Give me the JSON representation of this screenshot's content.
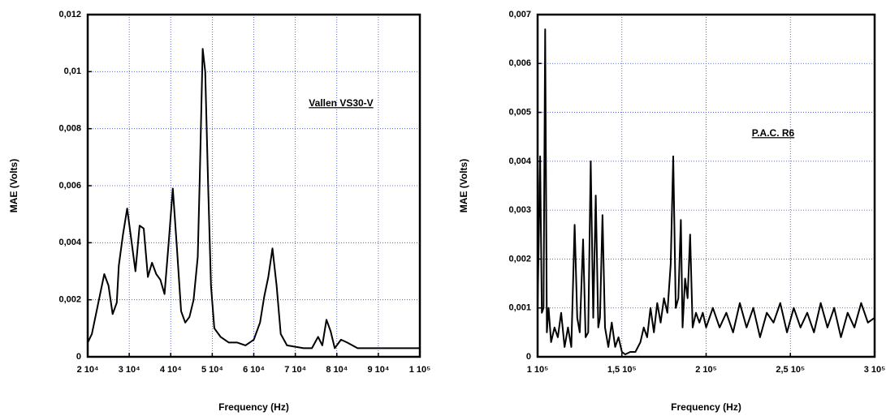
{
  "chart_data": [
    {
      "type": "line",
      "annotation": "Vallen  VS30-V",
      "x_label": "Frequency  (Hz)",
      "y_label": "MAE  (Volts)",
      "color": "#000000",
      "grid": true,
      "xlim": [
        20000,
        100000
      ],
      "xticks": [
        {
          "value": 20000,
          "label": "2 10⁴"
        },
        {
          "value": 30000,
          "label": "3 10⁴"
        },
        {
          "value": 40000,
          "label": "4 10⁴"
        },
        {
          "value": 50000,
          "label": "5 10⁴"
        },
        {
          "value": 60000,
          "label": "6 10⁴"
        },
        {
          "value": 70000,
          "label": "7 10⁴"
        },
        {
          "value": 80000,
          "label": "8 10⁴"
        },
        {
          "value": 90000,
          "label": "9 10⁴"
        },
        {
          "value": 100000,
          "label": "1 10⁵"
        }
      ],
      "ylim": [
        0,
        0.012
      ],
      "yticks": [
        0,
        {
          "value": 0.002,
          "label": "0,002"
        },
        {
          "value": 0.004,
          "label": "0,004"
        },
        {
          "value": 0.006,
          "label": "0,006"
        },
        {
          "value": 0.008,
          "label": "0,008"
        },
        {
          "value": 0.01,
          "label": "0,01"
        },
        {
          "value": 0.012,
          "label": "0,012"
        }
      ],
      "x": [
        20000,
        21000,
        22000,
        23000,
        24000,
        25000,
        26000,
        27000,
        27500,
        28500,
        29500,
        30500,
        31500,
        32500,
        33500,
        34500,
        35500,
        36500,
        37500,
        38500,
        39500,
        40500,
        41500,
        42500,
        43500,
        44500,
        45500,
        46500,
        47000,
        47700,
        48300,
        49000,
        49700,
        50500,
        52000,
        54000,
        56000,
        58000,
        60000,
        61500,
        62500,
        63500,
        64500,
        65500,
        66500,
        68000,
        72000,
        74000,
        75500,
        76500,
        77500,
        78500,
        79500,
        81000,
        82500,
        85000,
        90000,
        100000
      ],
      "values": [
        0.0005,
        0.0008,
        0.0015,
        0.0022,
        0.0029,
        0.0025,
        0.0015,
        0.0019,
        0.0032,
        0.0043,
        0.0052,
        0.0041,
        0.003,
        0.0046,
        0.0045,
        0.0028,
        0.0033,
        0.0029,
        0.0027,
        0.0022,
        0.004,
        0.0059,
        0.0038,
        0.0016,
        0.0012,
        0.0014,
        0.002,
        0.0035,
        0.0063,
        0.0108,
        0.01,
        0.006,
        0.0025,
        0.001,
        0.0007,
        0.0005,
        0.0005,
        0.0004,
        0.0006,
        0.0012,
        0.0021,
        0.0028,
        0.0038,
        0.0025,
        0.0008,
        0.0004,
        0.0003,
        0.0003,
        0.0007,
        0.0004,
        0.0013,
        0.0009,
        0.0003,
        0.0006,
        0.0005,
        0.0003,
        0.0003,
        0.0003
      ]
    },
    {
      "type": "line",
      "annotation": "P.A.C.  R6",
      "x_label": "Frequency  (Hz)",
      "y_label": "MAE  (Volts)",
      "color": "#000000",
      "grid": true,
      "xlim": [
        100000,
        300000
      ],
      "xticks": [
        {
          "value": 100000,
          "label": "1 10⁵"
        },
        {
          "value": 150000,
          "label": "1,5 10⁵"
        },
        {
          "value": 200000,
          "label": "2 10⁵"
        },
        {
          "value": 250000,
          "label": "2,5 10⁵"
        },
        {
          "value": 300000,
          "label": "3 10⁵"
        }
      ],
      "ylim": [
        0,
        0.007
      ],
      "yticks": [
        0,
        {
          "value": 0.001,
          "label": "0,001"
        },
        {
          "value": 0.002,
          "label": "0,002"
        },
        {
          "value": 0.003,
          "label": "0,003"
        },
        {
          "value": 0.004,
          "label": "0,004"
        },
        {
          "value": 0.005,
          "label": "0,005"
        },
        {
          "value": 0.006,
          "label": "0,006"
        },
        {
          "value": 0.007,
          "label": "0,007"
        }
      ],
      "x": [
        100000,
        101500,
        102500,
        103500,
        104500,
        105500,
        106500,
        108000,
        110000,
        112000,
        114000,
        116000,
        118000,
        120000,
        122000,
        123500,
        125000,
        127000,
        128500,
        130000,
        131500,
        133000,
        134500,
        136000,
        137000,
        138500,
        140000,
        142000,
        144000,
        146000,
        148000,
        150000,
        152000,
        155000,
        158000,
        161000,
        163000,
        165000,
        167000,
        169000,
        171000,
        173000,
        175000,
        177000,
        179000,
        180500,
        182000,
        183500,
        185000,
        186000,
        187500,
        189000,
        190500,
        192000,
        194000,
        196000,
        198000,
        200000,
        204000,
        208000,
        212000,
        216000,
        220000,
        224000,
        228000,
        232000,
        236000,
        240000,
        244000,
        248000,
        252000,
        256000,
        260000,
        264000,
        268000,
        272000,
        276000,
        280000,
        284000,
        288000,
        292000,
        296000,
        300000
      ],
      "values": [
        0.001,
        0.0041,
        0.0009,
        0.001,
        0.0067,
        0.0005,
        0.001,
        0.0003,
        0.0006,
        0.0004,
        0.0009,
        0.0002,
        0.0006,
        0.0002,
        0.0027,
        0.0008,
        0.0005,
        0.0024,
        0.0004,
        0.0005,
        0.004,
        0.0008,
        0.0033,
        0.0006,
        0.0008,
        0.0029,
        0.0006,
        0.0002,
        0.0007,
        0.0002,
        0.0004,
        0.0001,
        5e-05,
        0.0001,
        0.0001,
        0.0003,
        0.0006,
        0.0004,
        0.001,
        0.0005,
        0.0011,
        0.0007,
        0.0012,
        0.0009,
        0.0019,
        0.0041,
        0.001,
        0.0012,
        0.0028,
        0.0006,
        0.0016,
        0.0012,
        0.0025,
        0.0006,
        0.0009,
        0.0007,
        0.0009,
        0.0006,
        0.001,
        0.0006,
        0.0009,
        0.0005,
        0.0011,
        0.0006,
        0.001,
        0.0004,
        0.0009,
        0.0007,
        0.0011,
        0.0005,
        0.001,
        0.0006,
        0.0009,
        0.0005,
        0.0011,
        0.0006,
        0.001,
        0.0004,
        0.0009,
        0.0006,
        0.0011,
        0.0007,
        0.0008
      ]
    }
  ]
}
